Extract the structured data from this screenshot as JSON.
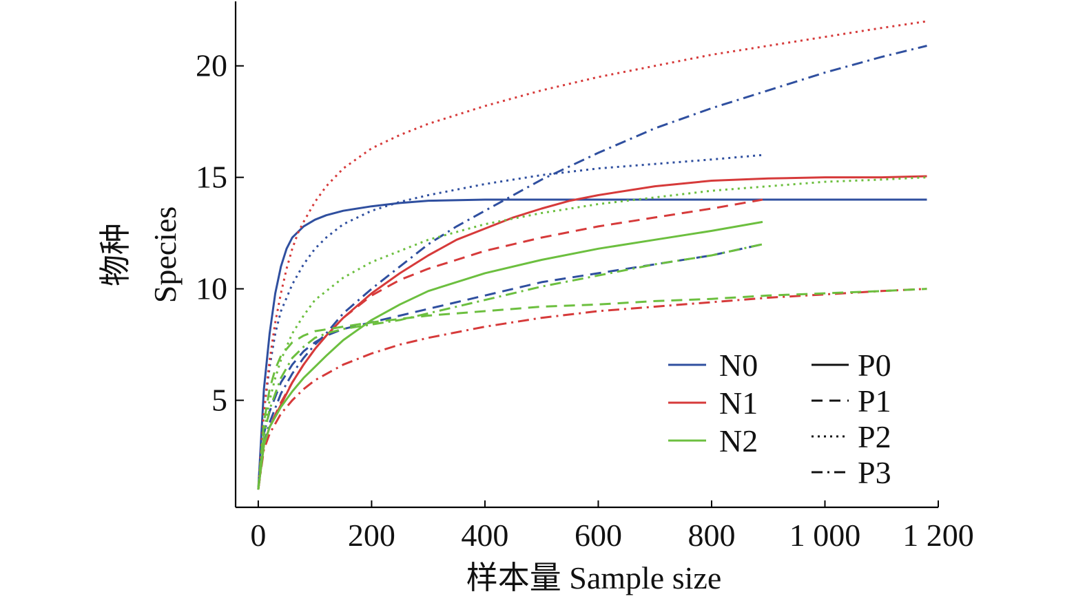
{
  "chart_data": {
    "type": "line",
    "xlabel": "样本量  Sample size",
    "ylabel_cn": "物种",
    "ylabel_en": "Species",
    "xlim": [
      -40,
      1200
    ],
    "ylim": [
      0.2,
      22.8
    ],
    "xticks": [
      0,
      200,
      400,
      600,
      800,
      1000,
      1200
    ],
    "xtick_labels": [
      "0",
      "200",
      "400",
      "600",
      "800",
      "1 000",
      "1 200"
    ],
    "yticks": [
      5,
      10,
      15,
      20
    ],
    "ytick_labels": [
      "5",
      "10",
      "15",
      "20"
    ],
    "grid": false,
    "legend_position": "bottom-right",
    "colors": {
      "N0": "#2f4f9f",
      "N1": "#d63a3a",
      "N2": "#6cbf3f"
    },
    "legend": {
      "color_entries": [
        {
          "label": "N0",
          "color": "#2f4f9f"
        },
        {
          "label": "N1",
          "color": "#d63a3a"
        },
        {
          "label": "N2",
          "color": "#6cbf3f"
        }
      ],
      "style_entries": [
        {
          "label": "P0",
          "dash": "solid"
        },
        {
          "label": "P1",
          "dash": "dashed"
        },
        {
          "label": "P2",
          "dash": "dotted"
        },
        {
          "label": "P3",
          "dash": "dashdot"
        }
      ]
    },
    "series": [
      {
        "nitrogen": "N0",
        "phosphorus": "P0",
        "style": "solid",
        "x": [
          0,
          10,
          20,
          30,
          40,
          50,
          60,
          80,
          100,
          120,
          150,
          200,
          250,
          300,
          400,
          500,
          600,
          800,
          1000,
          1180
        ],
        "y": [
          1,
          5.5,
          8,
          9.8,
          11,
          11.8,
          12.3,
          12.8,
          13.1,
          13.3,
          13.5,
          13.7,
          13.85,
          13.95,
          14,
          14,
          14,
          14,
          14,
          14
        ]
      },
      {
        "nitrogen": "N0",
        "phosphorus": "P1",
        "style": "dashed",
        "x": [
          0,
          10,
          20,
          40,
          60,
          80,
          100,
          120,
          150,
          200,
          250,
          300,
          350,
          400,
          450,
          500,
          600,
          700,
          800,
          890
        ],
        "y": [
          1,
          3.5,
          4.5,
          5.8,
          6.6,
          7.2,
          7.6,
          7.9,
          8.2,
          8.5,
          8.8,
          9.1,
          9.4,
          9.7,
          10.0,
          10.3,
          10.7,
          11.1,
          11.5,
          12
        ]
      },
      {
        "nitrogen": "N0",
        "phosphorus": "P2",
        "style": "dotted",
        "x": [
          0,
          10,
          20,
          30,
          40,
          60,
          80,
          100,
          120,
          150,
          200,
          250,
          300,
          400,
          500,
          600,
          700,
          800,
          890
        ],
        "y": [
          1,
          4.5,
          6.5,
          8,
          9,
          10.2,
          11.1,
          11.8,
          12.3,
          12.9,
          13.5,
          13.9,
          14.2,
          14.7,
          15.1,
          15.4,
          15.6,
          15.8,
          16
        ]
      },
      {
        "nitrogen": "N0",
        "phosphorus": "P3",
        "style": "dashdot",
        "x": [
          0,
          10,
          20,
          40,
          60,
          80,
          100,
          120,
          150,
          200,
          250,
          300,
          350,
          400,
          450,
          500,
          600,
          700,
          800,
          900,
          1000,
          1100,
          1180
        ],
        "y": [
          1,
          3,
          4,
          5.3,
          6.2,
          6.9,
          7.5,
          8,
          8.9,
          10,
          11,
          12,
          12.8,
          13.5,
          14.2,
          14.9,
          16.1,
          17.2,
          18.1,
          18.9,
          19.7,
          20.4,
          20.9
        ]
      },
      {
        "nitrogen": "N1",
        "phosphorus": "P0",
        "style": "solid",
        "x": [
          0,
          10,
          20,
          40,
          60,
          80,
          100,
          120,
          150,
          200,
          250,
          300,
          350,
          400,
          450,
          500,
          550,
          600,
          700,
          800,
          900,
          1000,
          1100,
          1180
        ],
        "y": [
          1,
          3.0,
          3.8,
          4.8,
          5.8,
          6.6,
          7.3,
          7.9,
          8.7,
          9.8,
          10.7,
          11.5,
          12.2,
          12.7,
          13.2,
          13.6,
          13.95,
          14.2,
          14.6,
          14.85,
          14.95,
          15,
          15,
          15.05
        ]
      },
      {
        "nitrogen": "N1",
        "phosphorus": "P1",
        "style": "dashed",
        "x": [
          0,
          10,
          20,
          40,
          60,
          80,
          100,
          120,
          150,
          200,
          250,
          300,
          350,
          400,
          450,
          500,
          600,
          700,
          800,
          890
        ],
        "y": [
          1,
          3,
          3.8,
          4.9,
          5.8,
          6.6,
          7.3,
          7.9,
          8.7,
          9.7,
          10.4,
          10.9,
          11.3,
          11.7,
          12.0,
          12.3,
          12.8,
          13.2,
          13.6,
          14
        ]
      },
      {
        "nitrogen": "N1",
        "phosphorus": "P2",
        "style": "dotted",
        "x": [
          0,
          10,
          20,
          30,
          40,
          50,
          60,
          70,
          80,
          100,
          120,
          150,
          200,
          250,
          300,
          400,
          500,
          600,
          700,
          800,
          900,
          1000,
          1100,
          1180
        ],
        "y": [
          1,
          4.5,
          6.8,
          8.5,
          9.8,
          10.9,
          11.8,
          12.5,
          13.0,
          13.9,
          14.6,
          15.4,
          16.3,
          16.9,
          17.4,
          18.2,
          18.9,
          19.5,
          20.0,
          20.5,
          20.9,
          21.3,
          21.7,
          22
        ]
      },
      {
        "nitrogen": "N1",
        "phosphorus": "P3",
        "style": "dashdot",
        "x": [
          0,
          10,
          20,
          40,
          60,
          80,
          100,
          150,
          200,
          250,
          300,
          400,
          500,
          600,
          700,
          800,
          900,
          1000,
          1100,
          1180
        ],
        "y": [
          1,
          2.8,
          3.5,
          4.4,
          5,
          5.5,
          5.9,
          6.6,
          7.1,
          7.5,
          7.8,
          8.3,
          8.7,
          9.0,
          9.2,
          9.4,
          9.6,
          9.75,
          9.9,
          10
        ]
      },
      {
        "nitrogen": "N2",
        "phosphorus": "P0",
        "style": "solid",
        "x": [
          0,
          10,
          20,
          40,
          60,
          80,
          100,
          120,
          150,
          200,
          250,
          300,
          400,
          500,
          600,
          700,
          800,
          890
        ],
        "y": [
          1,
          3,
          3.8,
          4.7,
          5.4,
          6,
          6.5,
          7,
          7.7,
          8.6,
          9.3,
          9.9,
          10.7,
          11.3,
          11.8,
          12.2,
          12.6,
          13
        ]
      },
      {
        "nitrogen": "N2",
        "phosphorus": "P1",
        "style": "dashed",
        "x": [
          0,
          10,
          20,
          30,
          40,
          60,
          80,
          100,
          150,
          200,
          300,
          400,
          500,
          600,
          700,
          800,
          900,
          1000,
          1100,
          1180
        ],
        "y": [
          1,
          4,
          5.5,
          6.4,
          7,
          7.6,
          7.9,
          8.1,
          8.3,
          8.5,
          8.8,
          9.0,
          9.2,
          9.3,
          9.45,
          9.55,
          9.7,
          9.8,
          9.9,
          10
        ]
      },
      {
        "nitrogen": "N2",
        "phosphorus": "P2",
        "style": "dotted",
        "x": [
          0,
          10,
          20,
          30,
          40,
          60,
          80,
          100,
          150,
          200,
          300,
          400,
          500,
          600,
          700,
          800,
          900,
          1000,
          1100,
          1180
        ],
        "y": [
          1,
          3.6,
          5,
          6,
          6.8,
          8,
          8.8,
          9.5,
          10.5,
          11.2,
          12.2,
          12.9,
          13.4,
          13.8,
          14.1,
          14.4,
          14.6,
          14.8,
          14.9,
          15
        ]
      },
      {
        "nitrogen": "N2",
        "phosphorus": "P3",
        "style": "dashdot",
        "x": [
          0,
          10,
          20,
          40,
          60,
          80,
          100,
          120,
          150,
          200,
          250,
          300,
          400,
          500,
          600,
          700,
          800,
          890
        ],
        "y": [
          1,
          3.4,
          4.6,
          6,
          6.9,
          7.4,
          7.8,
          8.0,
          8.2,
          8.4,
          8.6,
          8.9,
          9.5,
          10.1,
          10.6,
          11.1,
          11.5,
          12
        ]
      }
    ]
  }
}
